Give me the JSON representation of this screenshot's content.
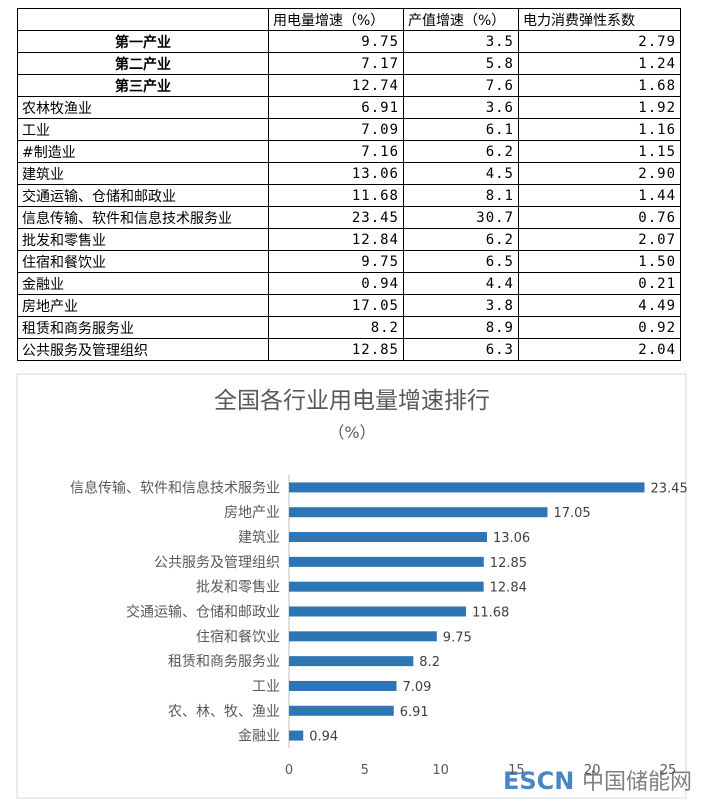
{
  "table": {
    "header": [
      "用电量增速（%）",
      "产值增速（%）",
      "电力消费弹性系数"
    ],
    "rows": [
      [
        "第一产业",
        "9.75",
        "3.5",
        "2.79"
      ],
      [
        "第二产业",
        "7.17",
        "5.8",
        "1.24"
      ],
      [
        "第三产业",
        "12.74",
        "7.6",
        "1.68"
      ],
      [
        "农林牧渔业",
        "6.91",
        "3.6",
        "1.92"
      ],
      [
        "工业",
        "7.09",
        "6.1",
        "1.16"
      ],
      [
        "#制造业",
        "7.16",
        "6.2",
        "1.15"
      ],
      [
        "建筑业",
        "13.06",
        "4.5",
        "2.90"
      ],
      [
        "交通运输、仓储和邮政业",
        "11.68",
        "8.1",
        "1.44"
      ],
      [
        "信息传输、软件和信息技术服务业",
        "23.45",
        "30.7",
        "0.76"
      ],
      [
        "批发和零售业",
        "12.84",
        "6.2",
        "2.07"
      ],
      [
        "住宿和餐饮业",
        "9.75",
        "6.5",
        "1.50"
      ],
      [
        "金融业",
        "0.94",
        "4.4",
        "0.21"
      ],
      [
        "房地产业",
        "17.05",
        "3.8",
        "4.49"
      ],
      [
        "租赁和商务服务业",
        "8.2",
        "8.9",
        "0.92"
      ],
      [
        "公共服务及管理组织",
        "12.85",
        "6.3",
        "2.04"
      ]
    ]
  },
  "chart_data": {
    "type": "hbar",
    "title": "全国各行业用电量增速排行",
    "subtitle": "（%）",
    "categories": [
      "信息传输、软件和信息技术服务业",
      "房地产业",
      "建筑业",
      "公共服务及管理组织",
      "批发和零售业",
      "交通运输、仓储和邮政业",
      "住宿和餐饮业",
      "租赁和商务服务业",
      "工业",
      "农、林、牧、渔业",
      "金融业"
    ],
    "values": [
      23.45,
      17.05,
      13.06,
      12.85,
      12.84,
      11.68,
      9.75,
      8.2,
      7.09,
      6.91,
      0.94
    ],
    "color": "#2e75b6",
    "xlim": [
      0,
      25
    ],
    "xticks": [
      0,
      5,
      10,
      15,
      20,
      25
    ],
    "grid": false
  },
  "watermark": {
    "brand": "ESCN",
    "name": "中国储能网"
  }
}
